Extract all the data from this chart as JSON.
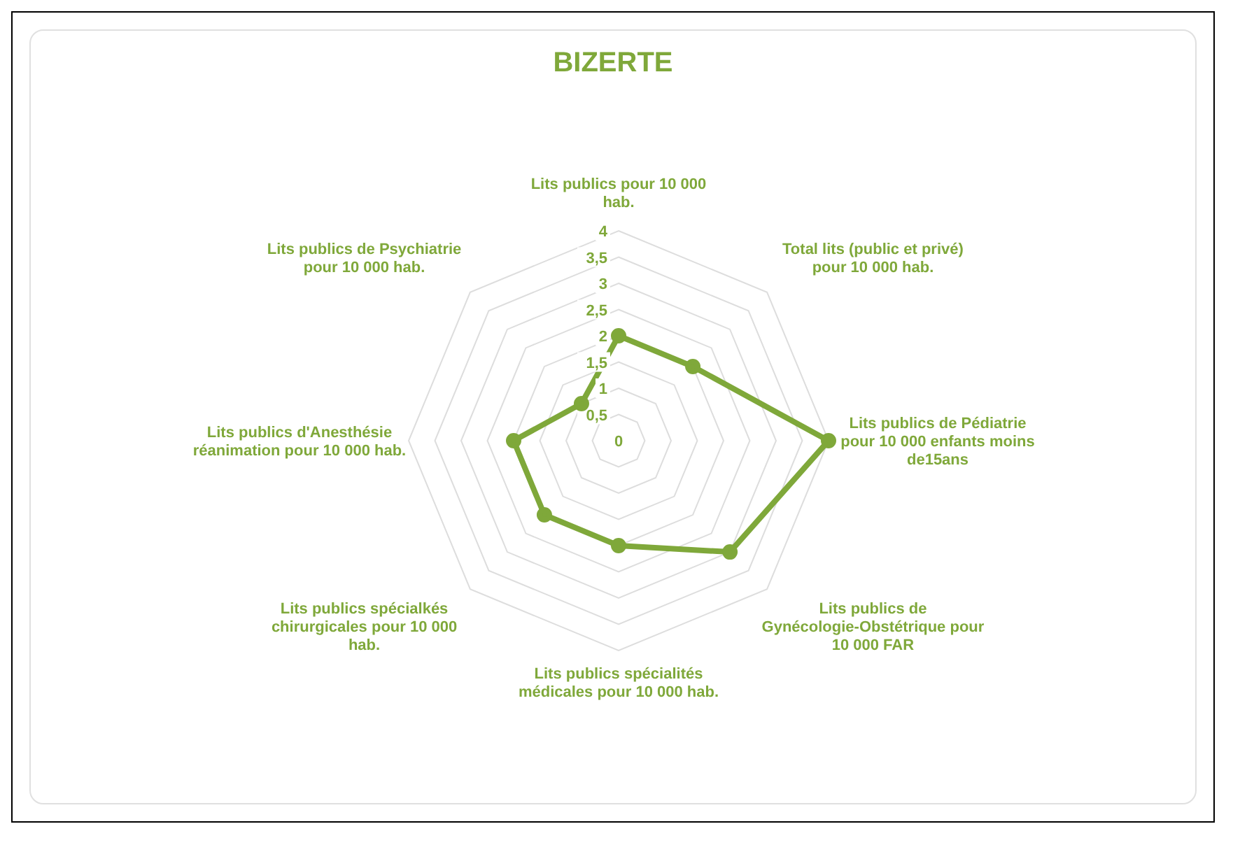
{
  "chart_data": {
    "type": "radar",
    "title": "BIZERTE",
    "categories": [
      "Lits publics pour 10 000 hab.",
      "Total lits (public et privé) pour 10 000 hab.",
      "Lits publics de Pédiatrie pour 10 000 enfants moins de15ans",
      "Lits publics de Gynécologie-Obstétrique pour 10 000 FAR",
      "Lits publics spécialités médicales pour 10 000 hab.",
      "Lits publics spécialkés chirurgicales pour 10 000 hab.",
      "Lits publics d'Anesthésie réanimation pour 10 000 hab.",
      "Lits publics de Psychiatrie pour 10 000 hab."
    ],
    "series": [
      {
        "color": "#7fa83a",
        "values": [
          2,
          2,
          4,
          3,
          2,
          2,
          2,
          1
        ]
      }
    ],
    "ylim": [
      0,
      4
    ],
    "yticks": [
      0,
      {
        "value": 0.5,
        "label": "0,5"
      },
      1,
      {
        "value": 1.5,
        "label": "1,5"
      },
      2,
      {
        "value": 2.5,
        "label": "2,5"
      },
      3,
      {
        "value": 3.5,
        "label": "3,5"
      },
      4
    ],
    "grid": true,
    "marker": "circle",
    "legend": false
  }
}
